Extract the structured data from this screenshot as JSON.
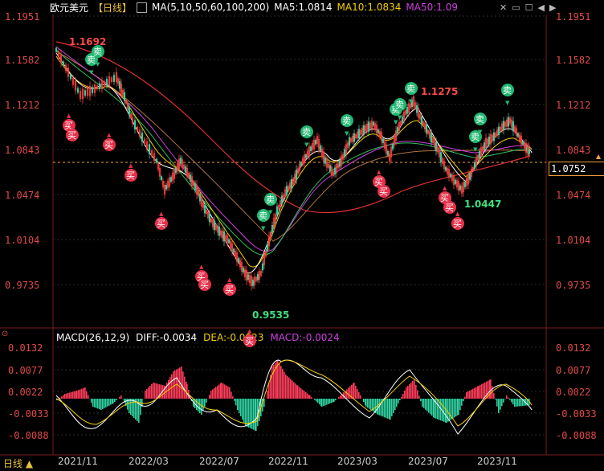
{
  "header": {
    "symbol": "欧元美元",
    "period": "【日线】",
    "ma_label": "MA(5,10,50,60,100,200)",
    "ma5": "MA5:1.0814",
    "ma10": "MA10:1.0834",
    "ma50": "MA50:1.09",
    "colors": {
      "ma5": "#ffffff",
      "ma10": "#f5d000",
      "ma50": "#d040e0"
    }
  },
  "price_axis": {
    "ticks": [
      "1.1951",
      "1.1582",
      "1.1212",
      "1.0843",
      "1.0474",
      "1.0104",
      "0.9735"
    ],
    "current": "1.0752",
    "annotations": {
      "high1": "1.1692",
      "high2": "1.1275",
      "low1": "0.9535",
      "low2": "1.0447"
    }
  },
  "macd": {
    "label": "MACD(26,12,9)",
    "diff": "DIFF:-0.0034",
    "dea": "DEA:-0.0023",
    "macd": "MACD:-0.0024",
    "ticks": [
      "0.0132",
      "0.0077",
      "0.0022",
      "-0.0033",
      "-0.0088"
    ]
  },
  "time_axis": {
    "labels": [
      "2021/11",
      "2022/03",
      "2022/07",
      "2022/11",
      "2023/03",
      "2023/07",
      "2023/11"
    ]
  },
  "bottom_left": "日线 ▲",
  "signals": {
    "buy": "买",
    "sell": "卖"
  },
  "top_right_icons": [
    "close-icon",
    "window-icon",
    "checkbox-icon",
    "prev-icon",
    "next-icon"
  ]
}
